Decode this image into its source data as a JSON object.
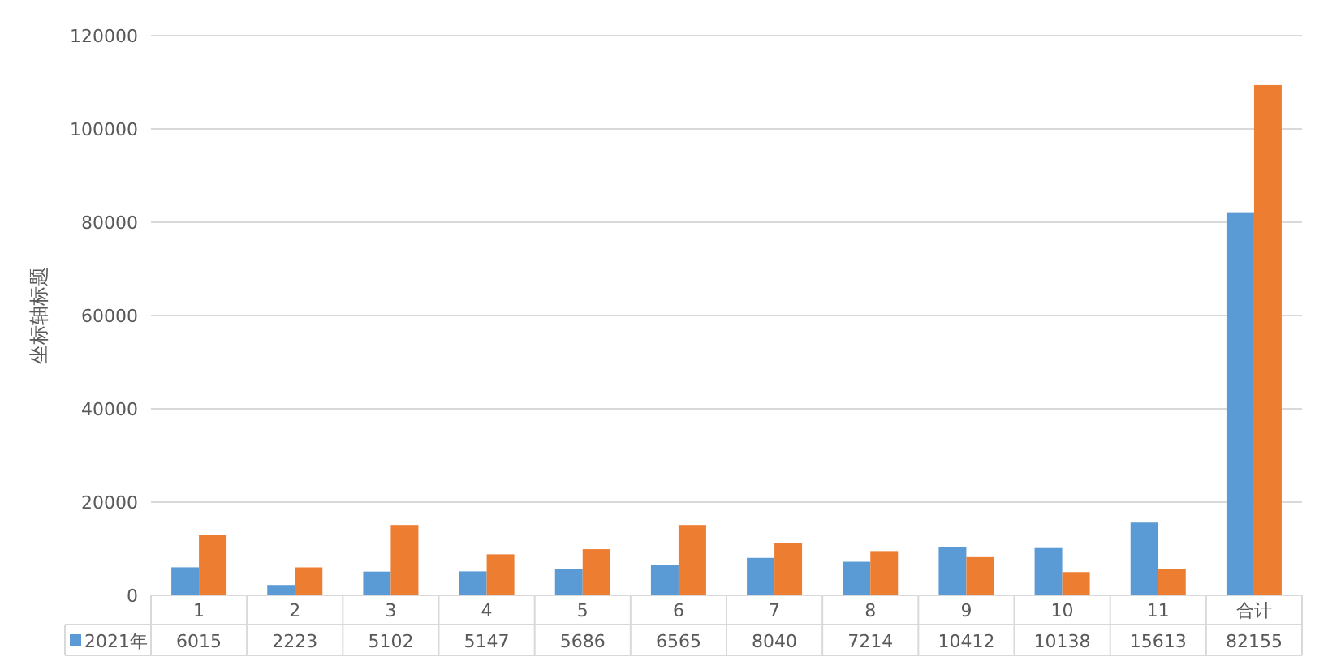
{
  "chart_data": {
    "type": "bar",
    "ylabel": "坐标轴标题",
    "categories": [
      "1",
      "2",
      "3",
      "4",
      "5",
      "6",
      "7",
      "8",
      "9",
      "10",
      "11",
      "合计"
    ],
    "series": [
      {
        "name": "2021年",
        "color": "#5b9bd5",
        "values": [
          6015,
          2223,
          5102,
          5147,
          5686,
          6565,
          8040,
          7214,
          10412,
          10138,
          15613,
          82155
        ],
        "value_labels": [
          "6015",
          "2223",
          "5102",
          "5147",
          "5686",
          "6565",
          "8040",
          "7214",
          "10412",
          "10138",
          "15613",
          "82155"
        ]
      },
      {
        "color": "#ed7d31",
        "values": [
          12900,
          6000,
          15100,
          8800,
          9900,
          15100,
          11300,
          9500,
          8200,
          5000,
          5700,
          109400
        ]
      }
    ],
    "ylim": [
      0,
      120000
    ],
    "yticks": [
      0,
      20000,
      40000,
      60000,
      80000,
      100000,
      120000
    ],
    "grid": "y"
  }
}
